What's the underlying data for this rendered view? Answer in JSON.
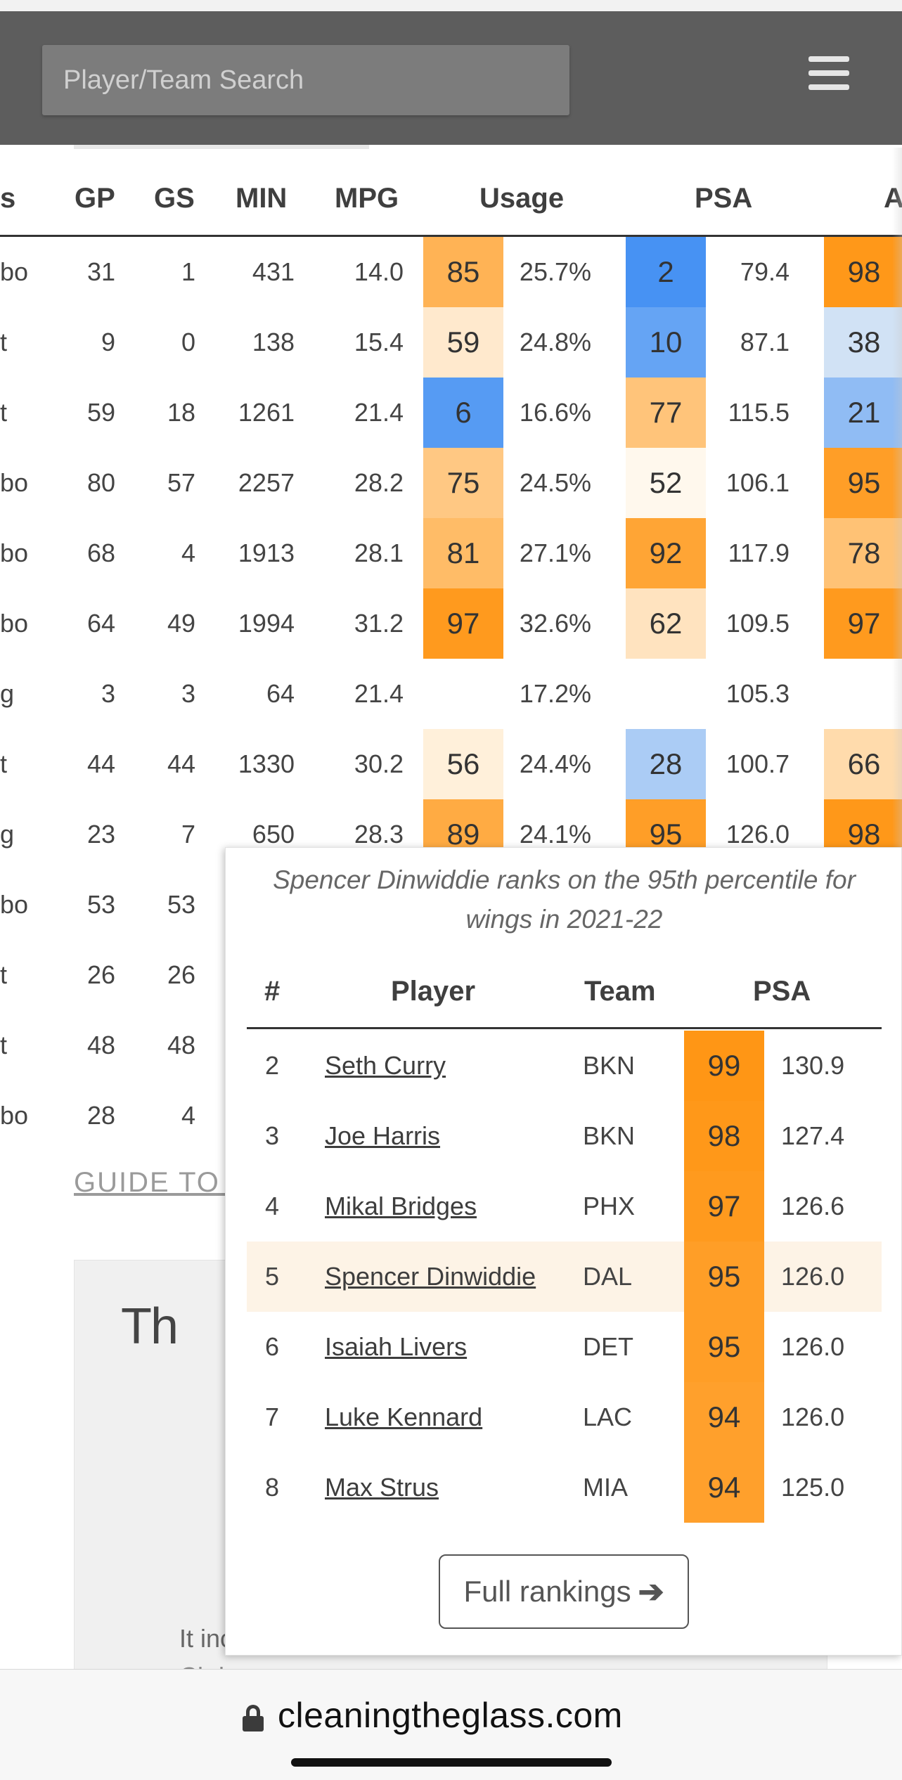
{
  "search": {
    "placeholder": "Player/Team Search"
  },
  "stats": {
    "headers": [
      "s",
      "GP",
      "GS",
      "MIN",
      "MPG",
      "Usage",
      "PSA",
      "A"
    ],
    "rows": [
      {
        "pos": "bo",
        "gp": "31",
        "gs": "1",
        "min": "431",
        "mpg": "14.0",
        "usage_pct": "85",
        "usage": "25.7%",
        "psa_pct": "2",
        "psa": "79.4",
        "a_pct": "98"
      },
      {
        "pos": "t",
        "gp": "9",
        "gs": "0",
        "min": "138",
        "mpg": "15.4",
        "usage_pct": "59",
        "usage": "24.8%",
        "psa_pct": "10",
        "psa": "87.1",
        "a_pct": "38"
      },
      {
        "pos": "t",
        "gp": "59",
        "gs": "18",
        "min": "1261",
        "mpg": "21.4",
        "usage_pct": "6",
        "usage": "16.6%",
        "psa_pct": "77",
        "psa": "115.5",
        "a_pct": "21"
      },
      {
        "pos": "bo",
        "gp": "80",
        "gs": "57",
        "min": "2257",
        "mpg": "28.2",
        "usage_pct": "75",
        "usage": "24.5%",
        "psa_pct": "52",
        "psa": "106.1",
        "a_pct": "95"
      },
      {
        "pos": "bo",
        "gp": "68",
        "gs": "4",
        "min": "1913",
        "mpg": "28.1",
        "usage_pct": "81",
        "usage": "27.1%",
        "psa_pct": "92",
        "psa": "117.9",
        "a_pct": "78"
      },
      {
        "pos": "bo",
        "gp": "64",
        "gs": "49",
        "min": "1994",
        "mpg": "31.2",
        "usage_pct": "97",
        "usage": "32.6%",
        "psa_pct": "62",
        "psa": "109.5",
        "a_pct": "97"
      },
      {
        "pos": "g",
        "gp": "3",
        "gs": "3",
        "min": "64",
        "mpg": "21.4",
        "usage_pct": "",
        "usage": "17.2%",
        "psa_pct": "",
        "psa": "105.3",
        "a_pct": ""
      },
      {
        "pos": "t",
        "gp": "44",
        "gs": "44",
        "min": "1330",
        "mpg": "30.2",
        "usage_pct": "56",
        "usage": "24.4%",
        "psa_pct": "28",
        "psa": "100.7",
        "a_pct": "66"
      },
      {
        "pos": "g",
        "gp": "23",
        "gs": "7",
        "min": "650",
        "mpg": "28.3",
        "usage_pct": "89",
        "usage": "24.1%",
        "psa_pct": "95",
        "psa": "126.0",
        "a_pct": "98"
      },
      {
        "pos": "bo",
        "gp": "53",
        "gs": "53"
      },
      {
        "pos": "t",
        "gp": "26",
        "gs": "26"
      },
      {
        "pos": "t",
        "gp": "48",
        "gs": "48"
      },
      {
        "pos": "bo",
        "gp": "28",
        "gs": "4"
      }
    ]
  },
  "guide_link": "GUIDE TO U",
  "promo": {
    "title": "Th",
    "text": "It inc",
    "text2": "Cl        d"
  },
  "popup": {
    "caption": "Spencer Dinwiddie ranks on the 95th percentile for wings in 2021-22",
    "headers": [
      "#",
      "Player",
      "Team",
      "PSA"
    ],
    "rows": [
      {
        "rank": "2",
        "player": "Seth Curry",
        "team": "BKN",
        "pct": "99",
        "psa": "130.9"
      },
      {
        "rank": "3",
        "player": "Joe Harris",
        "team": "BKN",
        "pct": "98",
        "psa": "127.4"
      },
      {
        "rank": "4",
        "player": "Mikal Bridges",
        "team": "PHX",
        "pct": "97",
        "psa": "126.6"
      },
      {
        "rank": "5",
        "player": "Spencer Dinwiddie",
        "team": "DAL",
        "pct": "95",
        "psa": "126.0"
      },
      {
        "rank": "6",
        "player": "Isaiah Livers",
        "team": "DET",
        "pct": "95",
        "psa": "126.0"
      },
      {
        "rank": "7",
        "player": "Luke Kennard",
        "team": "LAC",
        "pct": "94",
        "psa": "126.0"
      },
      {
        "rank": "8",
        "player": "Max Strus",
        "team": "MIA",
        "pct": "94",
        "psa": "125.0"
      }
    ],
    "highlighted_rank": "5",
    "button_label": "Full rankings"
  },
  "browser": {
    "url": "cleaningtheglass.com"
  },
  "colors": {
    "header_bg": "#5d5d5d",
    "search_bg": "#7c7c7c",
    "high_pct": "#ff9410",
    "low_pct": "#3f8ef3",
    "highlight_row": "#fdf3e6"
  },
  "icons": {
    "menu": "hamburger-menu-icon",
    "lock": "lock-icon",
    "arrow": "arrow-right-icon"
  }
}
